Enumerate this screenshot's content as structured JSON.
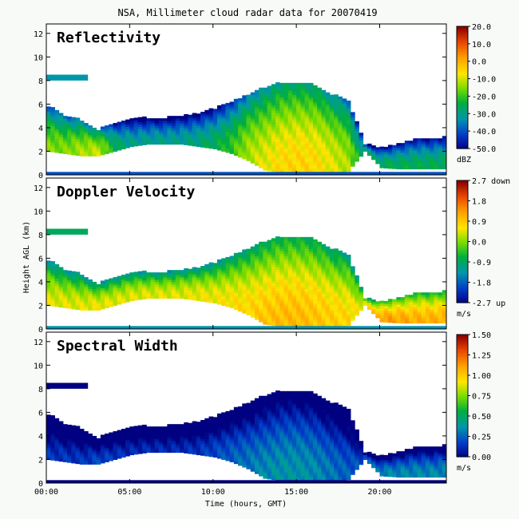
{
  "figure": {
    "title": "NSA, Millimeter cloud radar data for 20070419",
    "xlabel": "Time (hours, GMT)",
    "ylabel": "Height AGL (km)"
  },
  "chart_data": [
    {
      "type": "heatmap",
      "title": "Reflectivity",
      "x_range_hours": [
        0,
        24
      ],
      "y_range_km": [
        0,
        12.8
      ],
      "x_ticks": [
        "00:00",
        "05:00",
        "10:00",
        "15:00",
        "20:00"
      ],
      "x_tick_values": [
        0,
        5,
        10,
        15,
        20
      ],
      "y_ticks": [
        "0",
        "2",
        "4",
        "6",
        "8",
        "10",
        "12"
      ],
      "y_tick_values": [
        0,
        2,
        4,
        6,
        8,
        10,
        12
      ],
      "colorbar": {
        "range": [
          -50,
          20
        ],
        "labels": [
          "20.0",
          "10.0",
          "0.0",
          "-10.0",
          "-20.0",
          "-30.0",
          "-40.0",
          "-50.0"
        ],
        "unit": "dBZ"
      },
      "cloud": {
        "base_km": [
          2.0,
          1.8,
          1.6,
          1.6,
          2.0,
          2.4,
          2.6,
          2.6,
          2.6,
          2.4,
          2.2,
          1.8,
          1.2,
          0.4,
          0.2,
          0.2,
          0.2,
          0.2,
          0.3,
          2.0,
          0.6,
          0.5,
          0.5,
          0.5,
          0.5
        ],
        "top_km": [
          5.8,
          5.0,
          4.6,
          3.8,
          4.4,
          4.8,
          4.8,
          4.8,
          5.0,
          5.2,
          5.6,
          6.2,
          6.8,
          7.4,
          7.8,
          7.8,
          7.6,
          6.8,
          6.2,
          2.6,
          2.2,
          2.6,
          3.0,
          3.0,
          3.2
        ],
        "core_value": [
          -15,
          -15,
          -12,
          -10,
          -25,
          -30,
          -30,
          -30,
          -30,
          -28,
          -25,
          -20,
          -12,
          -8,
          -5,
          -4,
          -5,
          -8,
          -12,
          -30,
          -25,
          -25,
          -25,
          -25,
          -25
        ],
        "upper_layer_km": [
          8.0,
          8.5
        ],
        "upper_layer_hours": [
          0,
          2.5
        ]
      }
    },
    {
      "type": "heatmap",
      "title": "Doppler Velocity",
      "x_range_hours": [
        0,
        24
      ],
      "y_range_km": [
        0,
        12.8
      ],
      "x_ticks": [
        "00:00",
        "05:00",
        "10:00",
        "15:00",
        "20:00"
      ],
      "x_tick_values": [
        0,
        5,
        10,
        15,
        20
      ],
      "y_ticks": [
        "0",
        "2",
        "4",
        "6",
        "8",
        "10",
        "12"
      ],
      "y_tick_values": [
        0,
        2,
        4,
        6,
        8,
        10,
        12
      ],
      "colorbar": {
        "range": [
          -2.7,
          2.7
        ],
        "labels": [
          "2.7 down",
          "1.8",
          "0.9",
          "0.0",
          "-0.9",
          "-1.8",
          "-2.7 up"
        ],
        "unit": "m/s"
      },
      "cloud": {
        "base_km": [
          2.0,
          1.8,
          1.6,
          1.6,
          2.0,
          2.4,
          2.6,
          2.6,
          2.6,
          2.4,
          2.2,
          1.8,
          1.2,
          0.4,
          0.2,
          0.2,
          0.2,
          0.2,
          0.3,
          2.0,
          0.6,
          0.5,
          0.5,
          0.5,
          0.5
        ],
        "top_km": [
          5.8,
          5.0,
          4.6,
          3.8,
          4.4,
          4.8,
          4.8,
          4.8,
          5.0,
          5.2,
          5.6,
          6.2,
          6.8,
          7.4,
          7.8,
          7.8,
          7.6,
          6.8,
          6.2,
          2.6,
          2.2,
          2.6,
          3.0,
          3.0,
          3.2
        ],
        "core_value": [
          0.5,
          0.5,
          0.5,
          0.6,
          0.5,
          0.5,
          0.5,
          0.5,
          0.5,
          0.6,
          0.6,
          0.7,
          0.8,
          1.0,
          1.1,
          1.1,
          1.0,
          0.9,
          0.8,
          0.5,
          1.4,
          1.3,
          1.2,
          1.2,
          1.2
        ],
        "upper_layer_km": [
          8.0,
          8.5
        ],
        "upper_layer_hours": [
          0,
          2.5
        ]
      }
    },
    {
      "type": "heatmap",
      "title": "Spectral Width",
      "x_range_hours": [
        0,
        24
      ],
      "y_range_km": [
        0,
        12.8
      ],
      "x_ticks": [
        "00:00",
        "05:00",
        "10:00",
        "15:00",
        "20:00"
      ],
      "x_tick_values": [
        0,
        5,
        10,
        15,
        20
      ],
      "y_ticks": [
        "0",
        "2",
        "4",
        "6",
        "8",
        "10",
        "12"
      ],
      "y_tick_values": [
        0,
        2,
        4,
        6,
        8,
        10,
        12
      ],
      "colorbar": {
        "range": [
          0,
          1.5
        ],
        "labels": [
          "1.50",
          "1.25",
          "1.00",
          "0.75",
          "0.50",
          "0.25",
          "0.00"
        ],
        "unit": "m/s"
      },
      "cloud": {
        "base_km": [
          2.0,
          1.8,
          1.6,
          1.6,
          2.0,
          2.4,
          2.6,
          2.6,
          2.6,
          2.4,
          2.2,
          1.8,
          1.2,
          0.4,
          0.2,
          0.2,
          0.2,
          0.2,
          0.3,
          2.0,
          0.6,
          0.5,
          0.5,
          0.5,
          0.5
        ],
        "top_km": [
          5.8,
          5.0,
          4.6,
          3.8,
          4.4,
          4.8,
          4.8,
          4.8,
          5.0,
          5.2,
          5.6,
          6.2,
          6.8,
          7.4,
          7.8,
          7.8,
          7.6,
          6.8,
          6.2,
          2.6,
          2.2,
          2.6,
          3.0,
          3.0,
          3.2
        ],
        "core_value": [
          0.15,
          0.15,
          0.15,
          0.2,
          0.15,
          0.12,
          0.12,
          0.12,
          0.12,
          0.15,
          0.2,
          0.25,
          0.3,
          0.35,
          0.38,
          0.38,
          0.35,
          0.3,
          0.25,
          0.2,
          0.35,
          0.35,
          0.35,
          0.35,
          0.35
        ],
        "upper_layer_km": [
          8.0,
          8.5
        ],
        "upper_layer_hours": [
          0,
          2.5
        ]
      }
    }
  ]
}
